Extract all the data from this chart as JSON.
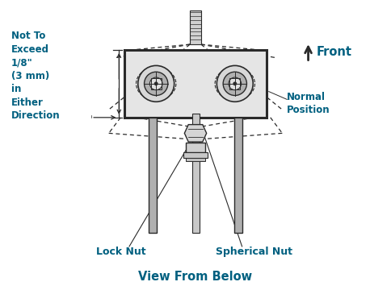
{
  "bg_color": "#ffffff",
  "line_color": "#2a2a2a",
  "teal_color": "#006080",
  "gray_fill": "#c8c8c8",
  "gray_dark": "#888888",
  "title": "View From Below",
  "label_front": "Front",
  "label_normal_position": "Normal\nPosition",
  "label_lock_nut": "Lock Nut",
  "label_spherical_nut": "Spherical Nut",
  "label_not_to_exceed": "Not To\nExceed\n1/8\"\n(3 mm)\nin\nEither\nDirection",
  "figsize": [
    4.84,
    3.55
  ],
  "dpi": 100
}
